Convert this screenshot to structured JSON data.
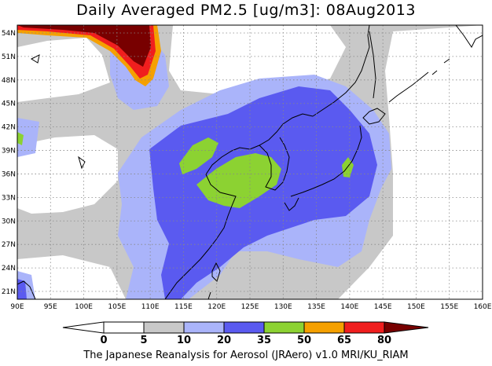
{
  "title": "Daily Averaged PM2.5 [ug/m3]: 08Aug2013",
  "footer": "The Japanese Reanalysis for Aerosol (JRAero) v1.0 MRI/KU_RIAM",
  "map": {
    "lon_range": [
      90,
      160
    ],
    "lat_range": [
      20,
      55
    ],
    "lon_ticks": [
      "90E",
      "95E",
      "100E",
      "105E",
      "110E",
      "115E",
      "120E",
      "125E",
      "130E",
      "135E",
      "140E",
      "145E",
      "150E",
      "155E",
      "160E"
    ],
    "lat_ticks": [
      "21N",
      "24N",
      "27N",
      "30N",
      "33N",
      "36N",
      "39N",
      "42N",
      "45N",
      "48N",
      "51N",
      "54N"
    ],
    "grid": true
  },
  "colorbar": {
    "levels": [
      "0",
      "5",
      "10",
      "20",
      "35",
      "50",
      "65",
      "80"
    ],
    "colors": [
      "#ffffff",
      "#ffffff",
      "#c8c8c8",
      "#aab4fa",
      "#5a5af0",
      "#8cd232",
      "#f5a000",
      "#f01e1e",
      "#780000"
    ]
  }
}
